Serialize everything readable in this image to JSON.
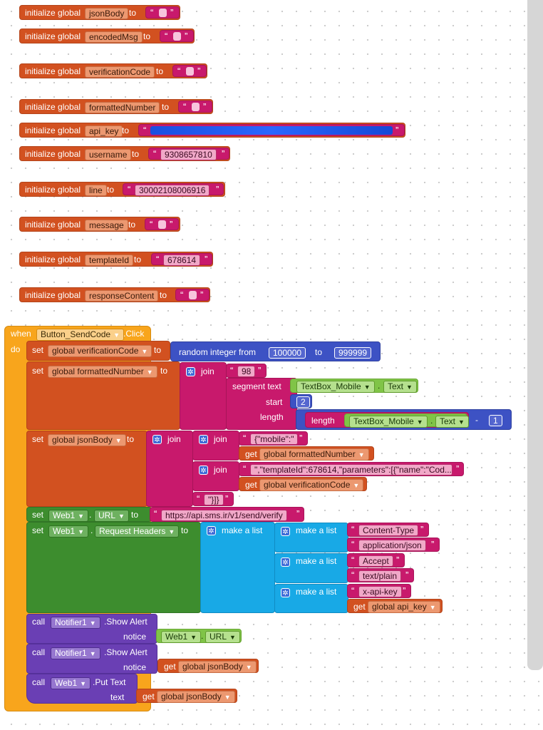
{
  "globals": {
    "prefix": "initialize global",
    "to": "to",
    "quote_open": "“",
    "quote_close": "”",
    "items": [
      {
        "name": "jsonBody",
        "value": ""
      },
      {
        "name": "encodedMsg",
        "value": ""
      },
      {
        "name": "verificationCode",
        "value": ""
      },
      {
        "name": "formattedNumber",
        "value": ""
      },
      {
        "name": "api_key",
        "value": ""
      },
      {
        "name": "username",
        "value": "9308657810"
      },
      {
        "name": "line",
        "value": "30002108006916"
      },
      {
        "name": "message",
        "value": ""
      },
      {
        "name": "templateId",
        "value": "678614"
      },
      {
        "name": "responseContent",
        "value": ""
      }
    ]
  },
  "event": {
    "when": "when",
    "do": "do",
    "component": "Button_SendCode",
    "event_name": ".Click"
  },
  "kw": {
    "set": "set",
    "to": "to",
    "get": "get",
    "call": "call",
    "join": "join",
    "make_a_list": "make a list",
    "random_integer_from": "random integer from",
    "segment_text": "segment  text",
    "start": "start",
    "length": "length",
    "minus": "-",
    "dot": "."
  },
  "stmt1": {
    "var": "global verificationCode",
    "from": "100000",
    "to": "999999"
  },
  "stmt2": {
    "var": "global formattedNumber",
    "prefix_str": "98",
    "component": "TextBox_Mobile",
    "prop": "Text",
    "start": "2",
    "length_component": "TextBox_Mobile",
    "length_prop": "Text",
    "subtract": "1"
  },
  "stmt3": {
    "var": "global jsonBody",
    "s1": "{\"mobile\":\"",
    "g1": "global formattedNumber",
    "s2": "\",\"templateId\":678614,\"parameters\":[{\"name\":\"Cod...",
    "g2": "global verificationCode",
    "s3": "\"}]}"
  },
  "stmt4": {
    "component": "Web1",
    "prop": "URL",
    "value": "https://api.sms.ir/v1/send/verify"
  },
  "stmt5": {
    "component": "Web1",
    "prop": "Request Headers",
    "h1_key": "Content-Type",
    "h1_val": "application/json",
    "h2_key": "Accept",
    "h2_val": "text/plain",
    "h3_key": "x-api-key",
    "h3_val": "global api_key"
  },
  "stmt6": {
    "component": "Notifier1",
    "method": ".Show Alert",
    "arg": "notice",
    "value_component": "Web1",
    "value_prop": "URL"
  },
  "stmt7": {
    "component": "Notifier1",
    "method": ".Show Alert",
    "arg": "notice",
    "value": "global jsonBody"
  },
  "stmt8": {
    "component": "Web1",
    "method": ".Put Text",
    "arg": "text",
    "value": "global jsonBody"
  }
}
